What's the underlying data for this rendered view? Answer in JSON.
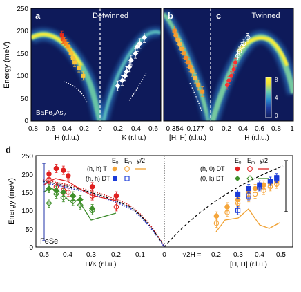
{
  "chart_data": [
    {
      "type": "heatmap",
      "panels": [
        {
          "letter": "a",
          "title": "Detwinned",
          "material_label": "BaFe2As2",
          "xlabel_left": "H (r.l.u.)",
          "xlabel_right": "K (r.l.u.)",
          "xticks_left": [
            "0.8",
            "0.6",
            "0.4",
            "0.2",
            "0"
          ],
          "xticks_right": [
            "0.2",
            "0.4",
            "0.6"
          ],
          "left_points_E": [
            [
              0.45,
              190
            ],
            [
              0.44,
              182
            ],
            [
              0.42,
              176
            ],
            [
              0.4,
              172
            ],
            [
              0.38,
              165
            ],
            [
              0.36,
              158
            ],
            [
              0.34,
              150
            ],
            [
              0.32,
              140
            ],
            [
              0.3,
              130
            ],
            [
              0.25,
              118
            ],
            [
              0.2,
              100
            ]
          ],
          "right_points_E": [
            [
              0.2,
              78
            ],
            [
              0.25,
              90
            ],
            [
              0.28,
              100
            ],
            [
              0.3,
              110
            ],
            [
              0.33,
              120
            ],
            [
              0.35,
              135
            ],
            [
              0.4,
              150
            ],
            [
              0.42,
              165
            ],
            [
              0.45,
              172
            ],
            [
              0.5,
              185
            ]
          ]
        },
        {
          "letter": "b",
          "title": "",
          "xlabel": "[H, H] (r.l.u.)",
          "xticks": [
            "0.354",
            "0.177",
            "0"
          ],
          "points_E": [
            [
              0.354,
              200
            ],
            [
              0.34,
              190
            ],
            [
              0.32,
              180
            ],
            [
              0.3,
              170
            ],
            [
              0.28,
              160
            ],
            [
              0.26,
              150
            ],
            [
              0.24,
              140
            ],
            [
              0.22,
              130
            ],
            [
              0.2,
              120
            ],
            [
              0.18,
              110
            ],
            [
              0.15,
              95
            ],
            [
              0.12,
              80
            ],
            [
              0.08,
              65
            ]
          ]
        },
        {
          "letter": "c",
          "title": "Twinned",
          "xlabel": "H (r.l.u.)",
          "xticks": [
            "0",
            "0.2",
            "0.4",
            "0.6",
            "0.8",
            "1"
          ],
          "points_E": [
            [
              0.2,
              80
            ],
            [
              0.22,
              90
            ],
            [
              0.25,
              100
            ],
            [
              0.28,
              115
            ],
            [
              0.3,
              130
            ],
            [
              0.33,
              145
            ],
            [
              0.35,
              155
            ],
            [
              0.38,
              165
            ],
            [
              0.4,
              172
            ],
            [
              0.45,
              185
            ]
          ]
        }
      ],
      "ylabel": "Energy (meV)",
      "yticks": [
        "0",
        "50",
        "100",
        "150",
        "200",
        "250"
      ],
      "ylim": [
        0,
        250
      ],
      "colorbar": {
        "ticks": [
          "0",
          "4",
          "8"
        ],
        "range": [
          0,
          8
        ]
      }
    },
    {
      "type": "scatter",
      "letter": "d",
      "material_label": "FeSe",
      "ylabel": "Energy (meV)",
      "xlabel_left": "H/K (r.l.u.)",
      "xlabel_mid": "√2H =",
      "xlabel_right": "[H, H] (r.l.u.)",
      "xticks_left": [
        "0.5",
        "0.4",
        "0.3",
        "0.2",
        "0.1",
        "0"
      ],
      "xticks_right": [
        "0.2",
        "0.3",
        "0.4",
        "0.5"
      ],
      "yticks": [
        "0",
        "50",
        "100",
        "150",
        "200",
        "250"
      ],
      "ylim": [
        0,
        250
      ],
      "legend": {
        "header_left": [
          "E",
          "E",
          "γ/2"
        ],
        "header_right": [
          "E",
          "E",
          "γ/2"
        ],
        "rows_left": [
          "(h, h) T",
          "(h, h) DT"
        ],
        "rows_right": [
          "(h, 0) DT",
          "(0, k) DT"
        ]
      },
      "series": [
        {
          "name": "(h, h) T E0",
          "x": [
            0.2,
            0.25,
            0.3,
            0.35,
            0.38,
            0.42,
            0.45,
            0.48
          ],
          "y": [
            85,
            110,
            130,
            150,
            160,
            170,
            175,
            180
          ]
        },
        {
          "name": "(h, h) T Em",
          "x": [
            0.2,
            0.25,
            0.3,
            0.35,
            0.38,
            0.42,
            0.45,
            0.48
          ],
          "y": [
            65,
            95,
            120,
            135,
            145,
            155,
            165,
            172
          ]
        },
        {
          "name": "(h, h) DT E0",
          "x": [
            0.3,
            0.35,
            0.4,
            0.45,
            0.48
          ],
          "y": [
            145,
            160,
            170,
            180,
            190
          ]
        },
        {
          "name": "(h, h) DT Em",
          "x": [
            0.3,
            0.35,
            0.4,
            0.45,
            0.48
          ],
          "y": [
            100,
            140,
            165,
            180,
            188
          ]
        },
        {
          "name": "(h, 0) DT E0",
          "x": [
            0.48,
            0.45,
            0.42,
            0.4,
            0.3,
            0.2
          ],
          "y": [
            200,
            215,
            210,
            195,
            165,
            140
          ]
        },
        {
          "name": "(h, 0) DT Em",
          "x": [
            0.48,
            0.45,
            0.42,
            0.4,
            0.3,
            0.2
          ],
          "y": [
            185,
            165,
            155,
            150,
            140,
            110
          ]
        },
        {
          "name": "(0, k) DT E0",
          "x": [
            0.48,
            0.45,
            0.42,
            0.38,
            0.35,
            0.3
          ],
          "y": [
            160,
            155,
            150,
            140,
            130,
            105
          ]
        },
        {
          "name": "(0, k) DT Em",
          "x": [
            0.48,
            0.45,
            0.42,
            0.38,
            0.35,
            0.3
          ],
          "y": [
            120,
            145,
            135,
            125,
            115,
            100
          ]
        }
      ]
    }
  ]
}
